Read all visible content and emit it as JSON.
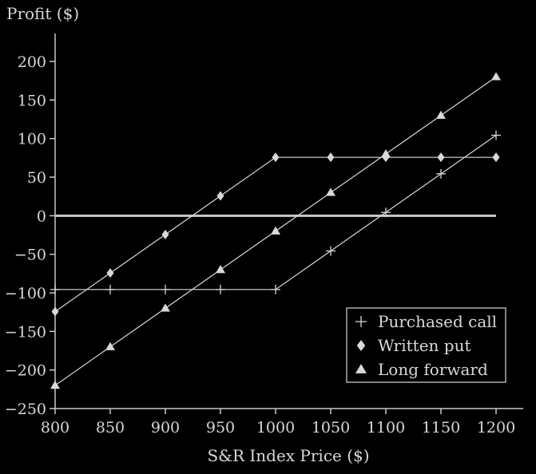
{
  "chart_data": {
    "type": "line",
    "title": "",
    "xlabel": "S&R Index Price ($)",
    "ylabel": "Profit ($)",
    "xlim": [
      800,
      1200
    ],
    "ylim": [
      -250,
      200
    ],
    "x_ticks": [
      800,
      850,
      900,
      950,
      1000,
      1050,
      1100,
      1150,
      1200
    ],
    "y_ticks": [
      200,
      150,
      100,
      50,
      0,
      -50,
      -100,
      -150,
      -200,
      -250
    ],
    "x_tick_labels": [
      "800",
      "850",
      "900",
      "950",
      "1000",
      "1050",
      "1100",
      "1150",
      "1200"
    ],
    "y_tick_labels": [
      "200",
      "150",
      "100",
      "50",
      "0",
      "−50",
      "−100",
      "−150",
      "−200",
      "−250"
    ],
    "zero_line": true,
    "grid": false,
    "legend_position": "bottom-right",
    "x": [
      800,
      850,
      900,
      950,
      1000,
      1050,
      1100,
      1150,
      1200
    ],
    "series": [
      {
        "name": "Purchased call",
        "marker": "plus",
        "values": [
          -95.68,
          -95.68,
          -95.68,
          -95.68,
          -95.68,
          -45.68,
          4.32,
          54.32,
          104.32
        ]
      },
      {
        "name": "Written put",
        "marker": "diamond",
        "values": [
          -124.32,
          -74.32,
          -24.32,
          25.68,
          75.68,
          75.68,
          75.68,
          75.68,
          75.68
        ]
      },
      {
        "name": "Long forward",
        "marker": "triangle",
        "values": [
          -220,
          -170,
          -120,
          -70,
          -20,
          30,
          80,
          130,
          180
        ]
      }
    ],
    "colors": {
      "line": "#d8d8d8",
      "axis": "#c8c8c8",
      "zero_line": "#c8c8c8",
      "background": "#000000"
    }
  }
}
